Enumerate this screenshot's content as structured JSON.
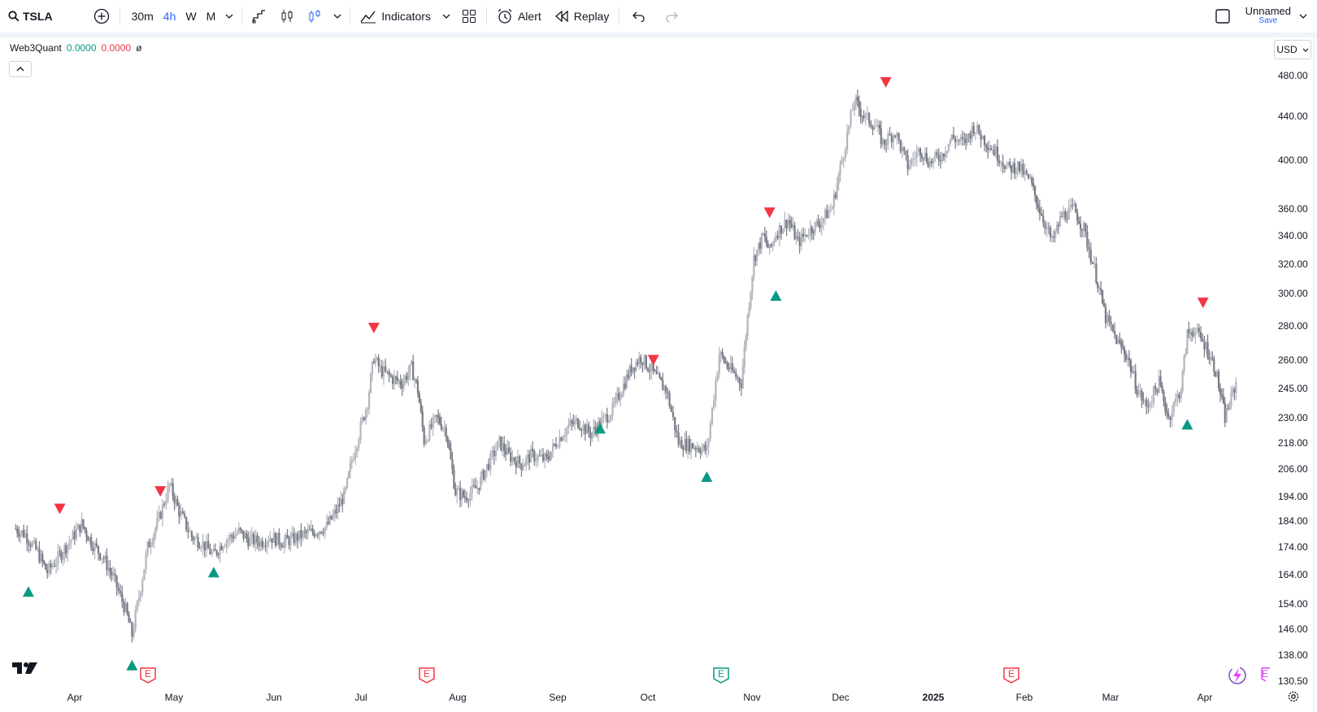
{
  "toolbar": {
    "symbol": "TSLA",
    "timeframes": [
      "30m",
      "4h",
      "W",
      "M"
    ],
    "active_timeframe": "4h",
    "indicators_label": "Indicators",
    "alert_label": "Alert",
    "replay_label": "Replay",
    "layout_name": "Unnamed",
    "save_label": "Save"
  },
  "legend": {
    "name": "Web3Quant",
    "value1": "0.0000",
    "value2": "0.0000",
    "suffix": "ø"
  },
  "currency": "USD",
  "price_axis": [
    "480.00",
    "440.00",
    "400.00",
    "360.00",
    "340.00",
    "320.00",
    "300.00",
    "280.00",
    "260.00",
    "245.00",
    "230.00",
    "218.00",
    "206.00",
    "194.00",
    "184.00",
    "174.00",
    "164.00",
    "154.00",
    "146.00",
    "138.00",
    "130.50"
  ],
  "time_axis": [
    "Apr",
    "May",
    "Jun",
    "Jul",
    "Aug",
    "Sep",
    "Oct",
    "Nov",
    "Dec",
    "2025",
    "Feb",
    "Mar",
    "Apr"
  ],
  "earnings_badge_text": "E",
  "colors": {
    "up_bar": "#b2b5be",
    "down_bar": "#787b86",
    "buy_marker": "#089981",
    "sell_marker": "#f23645",
    "accent": "#2962ff"
  },
  "chart_data": {
    "type": "line",
    "scale": "log",
    "x": [
      "2024-03-18",
      "2024-03-21",
      "2024-03-25",
      "2024-03-28",
      "2024-04-01",
      "2024-04-04",
      "2024-04-08",
      "2024-04-11",
      "2024-04-15",
      "2024-04-18",
      "2024-04-22",
      "2024-04-24",
      "2024-04-29",
      "2024-05-02",
      "2024-05-06",
      "2024-05-09",
      "2024-05-13",
      "2024-05-16",
      "2024-05-20",
      "2024-05-23",
      "2024-05-28",
      "2024-05-31",
      "2024-06-04",
      "2024-06-07",
      "2024-06-11",
      "2024-06-14",
      "2024-06-18",
      "2024-06-21",
      "2024-06-25",
      "2024-06-28",
      "2024-07-01",
      "2024-07-03",
      "2024-07-08",
      "2024-07-10",
      "2024-07-12",
      "2024-07-16",
      "2024-07-19",
      "2024-07-22",
      "2024-07-24",
      "2024-07-26",
      "2024-07-30",
      "2024-08-02",
      "2024-08-05",
      "2024-08-08",
      "2024-08-12",
      "2024-08-15",
      "2024-08-19",
      "2024-08-22",
      "2024-08-26",
      "2024-08-29",
      "2024-09-03",
      "2024-09-06",
      "2024-09-10",
      "2024-09-13",
      "2024-09-17",
      "2024-09-20",
      "2024-09-24",
      "2024-09-27",
      "2024-09-30",
      "2024-10-03",
      "2024-10-07",
      "2024-10-10",
      "2024-10-11",
      "2024-10-15",
      "2024-10-18",
      "2024-10-21",
      "2024-10-23",
      "2024-10-24",
      "2024-10-28",
      "2024-10-31",
      "2024-11-04",
      "2024-11-06",
      "2024-11-08",
      "2024-11-11",
      "2024-11-13",
      "2024-11-15",
      "2024-11-19",
      "2024-11-22",
      "2024-11-26",
      "2024-11-29",
      "2024-12-03",
      "2024-12-06",
      "2024-12-10",
      "2024-12-13",
      "2024-12-17",
      "2024-12-19",
      "2024-12-23",
      "2024-12-27",
      "2024-12-31",
      "2025-01-03",
      "2025-01-07",
      "2025-01-10",
      "2025-01-14",
      "2025-01-17",
      "2025-01-21",
      "2025-01-24",
      "2025-01-28",
      "2025-01-31",
      "2025-02-04",
      "2025-02-07",
      "2025-02-11",
      "2025-02-14",
      "2025-02-18",
      "2025-02-21",
      "2025-02-25",
      "2025-02-28",
      "2025-03-04",
      "2025-03-07",
      "2025-03-10",
      "2025-03-13",
      "2025-03-17",
      "2025-03-20",
      "2025-03-24",
      "2025-03-26",
      "2025-03-28",
      "2025-04-01",
      "2025-04-04",
      "2025-04-07",
      "2025-04-09",
      "2025-04-11"
    ],
    "series": [
      {
        "values": [
          181,
          179,
          172,
          165,
          171,
          176,
          183,
          176,
          170,
          163,
          152,
          144,
          174,
          183,
          199,
          188,
          178,
          176,
          171,
          176,
          180,
          177,
          176,
          178,
          176,
          177,
          179,
          180,
          182,
          188,
          196,
          210,
          238,
          262,
          255,
          250,
          248,
          256,
          244,
          219,
          230,
          224,
          196,
          194,
          198,
          207,
          218,
          212,
          208,
          212,
          210,
          218,
          226,
          228,
          222,
          227,
          234,
          245,
          256,
          262,
          253,
          246,
          245,
          218,
          217,
          216,
          215,
          214,
          264,
          256,
          248,
          286,
          324,
          340,
          329,
          342,
          352,
          335,
          345,
          350,
          362,
          400,
          455,
          440,
          430,
          415,
          425,
          395,
          410,
          398,
          405,
          420,
          415,
          430,
          416,
          407,
          393,
          395,
          382,
          360,
          335,
          355,
          360,
          345,
          312,
          285,
          270,
          262,
          245,
          235,
          248,
          230,
          245,
          275,
          278,
          268,
          255,
          230,
          240,
          250
        ]
      }
    ],
    "buy_signals": [
      {
        "x": "2024-03-22",
        "y": 164
      },
      {
        "x": "2024-04-24",
        "y": 140
      },
      {
        "x": "2024-05-20",
        "y": 171
      },
      {
        "x": "2024-09-20",
        "y": 233
      },
      {
        "x": "2024-10-24",
        "y": 210
      },
      {
        "x": "2024-11-15",
        "y": 310
      },
      {
        "x": "2025-03-26",
        "y": 235
      }
    ],
    "sell_signals": [
      {
        "x": "2024-04-01",
        "y": 183
      },
      {
        "x": "2024-05-03",
        "y": 190
      },
      {
        "x": "2024-07-10",
        "y": 270
      },
      {
        "x": "2024-10-07",
        "y": 252
      },
      {
        "x": "2024-11-13",
        "y": 346
      },
      {
        "x": "2024-12-20",
        "y": 458
      },
      {
        "x": "2025-03-31",
        "y": 285
      }
    ]
  }
}
